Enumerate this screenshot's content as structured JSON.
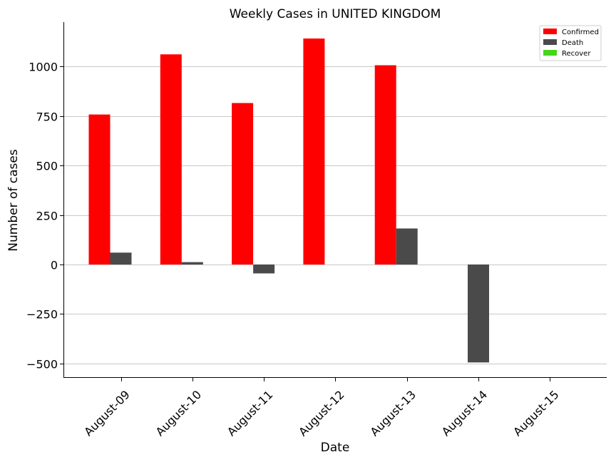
{
  "chart_data": {
    "type": "bar",
    "title": "Weekly Cases in UNITED KINGDOM",
    "xlabel": "Date",
    "ylabel": "Number of cases",
    "categories": [
      "August-09",
      "August-10",
      "August-11",
      "August-12",
      "August-13",
      "August-14",
      "August-15"
    ],
    "series": [
      {
        "name": "Confirmed",
        "color": "#ff0000",
        "values": [
          758,
          1062,
          816,
          1142,
          1007,
          0,
          0
        ]
      },
      {
        "name": "Death",
        "color": "#4a4a4a",
        "values": [
          60,
          12,
          -45,
          0,
          182,
          -495,
          0
        ]
      },
      {
        "name": "Recover",
        "color": "#44d617",
        "values": [
          0,
          0,
          0,
          0,
          0,
          0,
          0
        ]
      }
    ],
    "ylim": [
      -573,
      1225
    ],
    "yticks": [
      -500,
      -250,
      0,
      250,
      500,
      750,
      1000
    ],
    "ytick_labels": [
      "−500",
      "−250",
      "0",
      "250",
      "500",
      "750",
      "1000"
    ],
    "grid": "horizontal",
    "legend_position": "top-right"
  }
}
